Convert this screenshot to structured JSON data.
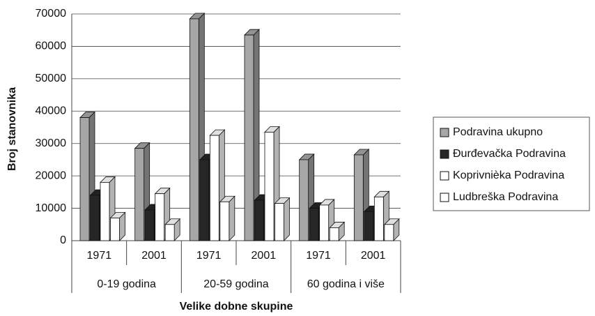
{
  "chart_data": {
    "type": "bar3d",
    "y_axis_label": "Broj stanovnika",
    "x_axis_label": "Velike dobne skupine",
    "categories": [
      "1971",
      "2001",
      "1971",
      "2001",
      "1971",
      "2001"
    ],
    "category_groups": [
      "0-19 godina",
      "20-59 godina",
      "60 godina i više"
    ],
    "series": [
      {
        "name": "Podravina ukupno",
        "color": "#a6a6a6",
        "values": [
          38000,
          28500,
          68500,
          63500,
          25000,
          26500
        ]
      },
      {
        "name": "Đurđevačka Podravina",
        "color": "#262626",
        "values": [
          14000,
          9500,
          25000,
          12500,
          10000,
          9000
        ]
      },
      {
        "name": "Koprivnièka Podravina",
        "color": "#ffffff",
        "values": [
          18000,
          14500,
          32500,
          33500,
          11000,
          13500
        ]
      },
      {
        "name": "Ludbreška Podravina",
        "color": "#ffffff",
        "values": [
          7000,
          5000,
          12000,
          11500,
          4000,
          5000
        ]
      }
    ],
    "ylim": [
      0,
      70000
    ],
    "yticks": [
      0,
      10000,
      20000,
      30000,
      40000,
      50000,
      60000,
      70000
    ],
    "grid": true,
    "legend": "right"
  }
}
